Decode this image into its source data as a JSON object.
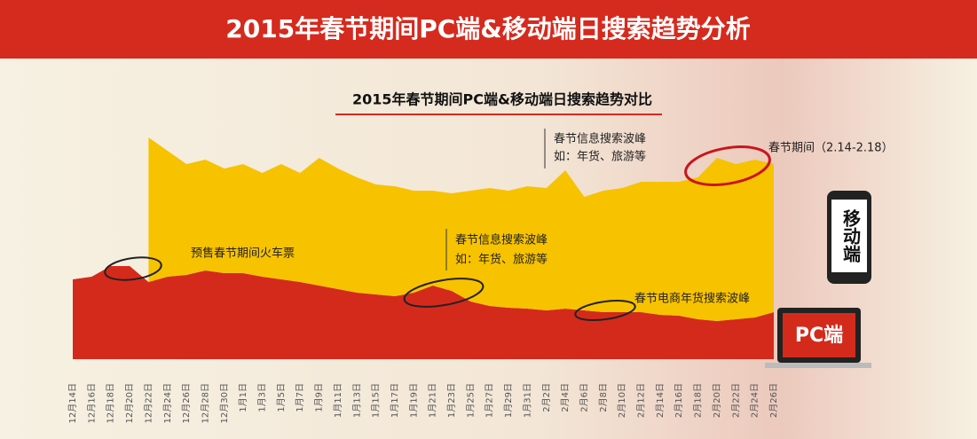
{
  "chart_data": {
    "type": "stacked-area",
    "header": "2015年春节期间PC端&移动端日搜索趋势分析",
    "title": "2015年春节期间PC端&移动端日搜索趋势对比",
    "categories": [
      "12月14日",
      "12月16日",
      "12月18日",
      "12月20日",
      "12月22日",
      "12月24日",
      "12月26日",
      "12月28日",
      "12月30日",
      "1月1日",
      "1月3日",
      "1月5日",
      "1月7日",
      "1月9日",
      "1月11日",
      "1月13日",
      "1月15日",
      "1月17日",
      "1月19日",
      "1月21日",
      "1月23日",
      "1月25日",
      "1月27日",
      "1月29日",
      "1月31日",
      "2月2日",
      "2月4日",
      "2月6日",
      "2月8日",
      "2月10日",
      "2月12日",
      "2月14日",
      "2月16日",
      "2月18日",
      "2月20日",
      "2月22日",
      "2月24日",
      "2月26日"
    ],
    "series": [
      {
        "name": "PC端",
        "color": "#d42a1c",
        "values": [
          90,
          93,
          105,
          105,
          87,
          93,
          95,
          100,
          97,
          97,
          93,
          90,
          87,
          83,
          79,
          75,
          73,
          71,
          75,
          83,
          77,
          65,
          60,
          58,
          57,
          55,
          57,
          55,
          53,
          53,
          53,
          50,
          49,
          45,
          43,
          45,
          47,
          53
        ]
      },
      {
        "name": "移动端",
        "color": "#f7c200",
        "values": [
          null,
          null,
          null,
          null,
          163,
          142,
          125,
          125,
          118,
          123,
          117,
          130,
          123,
          144,
          136,
          130,
          124,
          124,
          115,
          107,
          110,
          125,
          133,
          132,
          138,
          138,
          156,
          128,
          137,
          140,
          147,
          150,
          151,
          160,
          184,
          175,
          178,
          167
        ]
      }
    ],
    "annotations": [
      "预售春节期间火车票",
      "春节信息搜索波峰",
      "如：年货、旅游等",
      "春节电商年货搜索波峰",
      "春节信息搜索波峰",
      "如：年货、旅游等",
      "春节期间（2.14-2.18）"
    ]
  }
}
